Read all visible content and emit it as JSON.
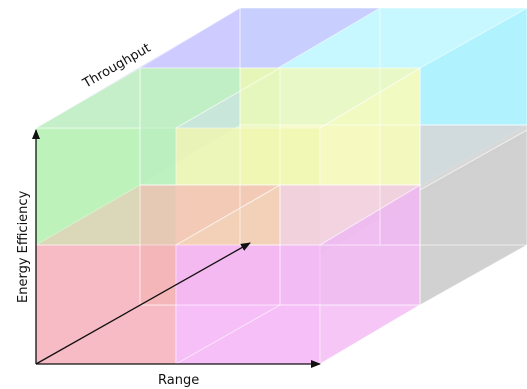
{
  "axes": {
    "x_label": "Range",
    "y_label": "Energy Efficiency",
    "z_label": "Throughput"
  },
  "colors": {
    "axis": "#111111",
    "green": "#b6f2b3",
    "blue": "#c9c9ff",
    "cyan": "#b8f6ff",
    "yellow": "#f3f9b4",
    "pink": "#f6b0bb",
    "magenta": "#f5b4f6",
    "gray": "#cfcfcf",
    "gray_top": "#e2e2e2"
  }
}
